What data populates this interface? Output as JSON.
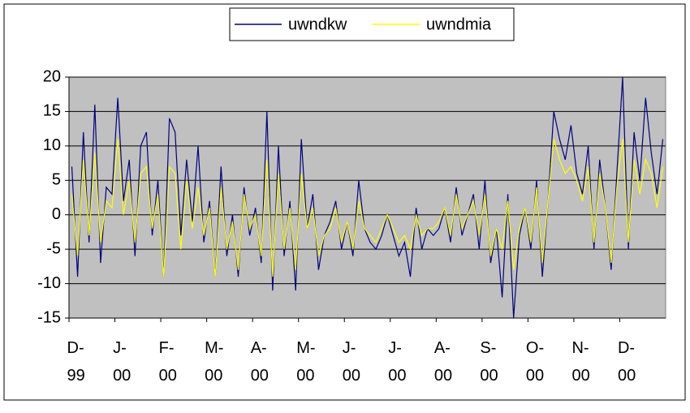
{
  "chart_data": {
    "type": "line",
    "categories": [
      "D-99",
      null,
      null,
      null,
      null,
      null,
      null,
      null,
      "J-00",
      null,
      null,
      null,
      null,
      null,
      null,
      null,
      "F-00",
      null,
      null,
      null,
      null,
      null,
      null,
      null,
      "M-00",
      null,
      null,
      null,
      null,
      null,
      null,
      null,
      "A-00",
      null,
      null,
      null,
      null,
      null,
      null,
      null,
      "M-00",
      null,
      null,
      null,
      null,
      null,
      null,
      null,
      "J-00",
      null,
      null,
      null,
      null,
      null,
      null,
      null,
      "J-00",
      null,
      null,
      null,
      null,
      null,
      null,
      null,
      "A-00",
      null,
      null,
      null,
      null,
      null,
      null,
      null,
      "S-00",
      null,
      null,
      null,
      null,
      null,
      null,
      null,
      "O-00",
      null,
      null,
      null,
      null,
      null,
      null,
      null,
      "N-00",
      null,
      null,
      null,
      null,
      null,
      null,
      null,
      "D-00",
      null,
      null,
      null,
      null,
      null,
      null,
      null
    ],
    "series": [
      {
        "name": "uwndkw",
        "color": "#000080",
        "values": [
          7,
          -9,
          12,
          -4,
          16,
          -7,
          4,
          3,
          17,
          2,
          8,
          -6,
          10,
          12,
          -3,
          5,
          -9,
          14,
          12,
          -3,
          8,
          -1,
          10,
          -4,
          2,
          -9,
          7,
          -6,
          0,
          -9,
          4,
          -3,
          1,
          -7,
          15,
          -11,
          10,
          -6,
          2,
          -11,
          11,
          -2,
          3,
          -8,
          -3,
          -1,
          2,
          -5,
          -1,
          -6,
          5,
          -2,
          -4,
          -5,
          -3,
          0,
          -3,
          -6,
          -4,
          -9,
          1,
          -5,
          -2,
          -3,
          -2,
          1,
          -4,
          4,
          -3,
          0,
          3,
          -5,
          5,
          -7,
          -2,
          -12,
          3,
          -15,
          -3,
          1,
          -5,
          5,
          -9,
          2,
          15,
          11,
          8,
          13,
          6,
          3,
          10,
          -5,
          8,
          1,
          -8,
          6,
          20,
          -5,
          12,
          5,
          17,
          9,
          3,
          11
        ]
      },
      {
        "name": "uwndmia",
        "color": "#ffff00",
        "values": [
          3,
          -6,
          8,
          -3,
          9,
          -4,
          2,
          1,
          11,
          0,
          5,
          -4,
          6,
          7,
          -2,
          3,
          -9,
          7,
          6,
          -5,
          5,
          -2,
          4,
          -3,
          1,
          -9,
          4,
          -5,
          -1,
          -8,
          3,
          -2,
          0,
          -6,
          8,
          -9,
          6,
          -5,
          1,
          -8,
          6,
          -2,
          1,
          -6,
          -3,
          -2,
          1,
          -4,
          -1,
          -5,
          2,
          -2,
          -3,
          -4,
          -2,
          0,
          -2,
          -4,
          -3,
          -5,
          0,
          -3,
          -2,
          -2,
          -1,
          1,
          -3,
          3,
          -2,
          0,
          2,
          -3,
          3,
          -6,
          -2,
          -5,
          2,
          -8,
          -2,
          1,
          -4,
          4,
          -7,
          2,
          11,
          8,
          6,
          7,
          5,
          2,
          7,
          -4,
          6,
          1,
          -7,
          4,
          11,
          -4,
          8,
          3,
          8,
          6,
          1,
          7
        ]
      }
    ],
    "ylim": [
      -15,
      20
    ],
    "yticks": [
      -15,
      -10,
      -5,
      0,
      5,
      10,
      15,
      20
    ],
    "grid": true,
    "legend": "top",
    "plot_background": "#c0c0c0"
  }
}
